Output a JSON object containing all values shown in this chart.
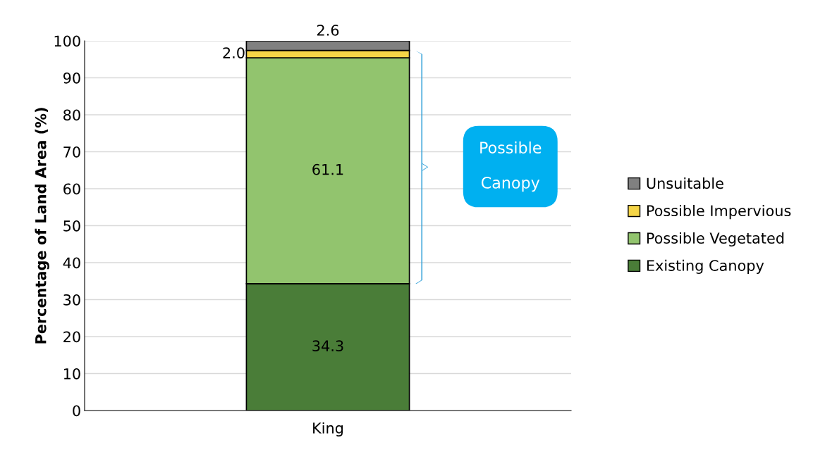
{
  "chart_data": {
    "type": "bar",
    "stacked": true,
    "ylabel": "Percentage of Land Area (%)",
    "categories": [
      "King"
    ],
    "series": [
      {
        "name": "Existing Canopy",
        "color": "#4a7d38",
        "values": [
          34.3
        ],
        "value_labels": [
          "34.3"
        ]
      },
      {
        "name": "Possible Vegetated",
        "color": "#92c46e",
        "values": [
          61.1
        ],
        "value_labels": [
          "61.1"
        ]
      },
      {
        "name": "Possible Impervious",
        "color": "#f5d547",
        "values": [
          2.0
        ],
        "value_labels": [
          "2.0"
        ]
      },
      {
        "name": "Unsuitable",
        "color": "#808080",
        "values": [
          2.6
        ],
        "value_labels": [
          "2.6"
        ]
      }
    ],
    "ylim": [
      0,
      100
    ],
    "yticks": [
      0,
      10,
      20,
      30,
      40,
      50,
      60,
      70,
      80,
      90,
      100
    ],
    "grid": "y",
    "legend": "right",
    "annotations": [
      "Possible\n\nCanopy"
    ]
  }
}
